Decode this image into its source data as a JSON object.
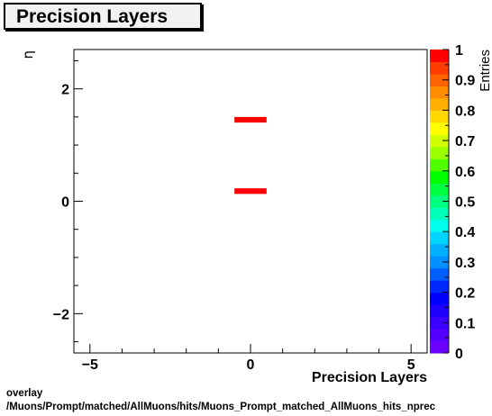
{
  "title": "Precision Layers",
  "footer": {
    "line1": "overlay",
    "line2": "/Muons/Prompt/matched/AllMuons/hits/Muons_Prompt_matched_AllMuons_hits_nprec"
  },
  "chart_data": {
    "type": "heatmap",
    "title": "Precision Layers",
    "xlabel": "Precision Layers",
    "ylabel": "η",
    "zlabel": "Entries",
    "xlim": [
      -5.5,
      5.5
    ],
    "ylim": [
      -2.7,
      2.7
    ],
    "zlim": [
      0,
      1
    ],
    "x_ticks": [
      -5,
      0,
      5
    ],
    "x_tick_labels": [
      "−5",
      "0",
      "5"
    ],
    "y_ticks": [
      -2,
      0,
      2
    ],
    "y_tick_labels": [
      "−2",
      "0",
      "2"
    ],
    "z_ticks": [
      0,
      0.1,
      0.2,
      0.3,
      0.4,
      0.5,
      0.6,
      0.7,
      0.8,
      0.9,
      1
    ],
    "z_tick_labels": [
      "0",
      "0.1",
      "0.2",
      "0.3",
      "0.4",
      "0.5",
      "0.6",
      "0.7",
      "0.8",
      "0.9",
      "1"
    ],
    "bins": [
      {
        "x": [
          -0.5,
          0.5
        ],
        "y": [
          1.4,
          1.5
        ],
        "value": 1
      },
      {
        "x": [
          -0.5,
          0.5
        ],
        "y": [
          0.13,
          0.23
        ],
        "value": 1
      }
    ],
    "palette": [
      "#6a00ff",
      "#5400ff",
      "#3c00ff",
      "#1e00ff",
      "#0000ff",
      "#0028ff",
      "#0060ff",
      "#0090ff",
      "#00b0ff",
      "#00d4ff",
      "#00ffee",
      "#00ffb8",
      "#00ff80",
      "#00ff40",
      "#00ff00",
      "#50ff00",
      "#9cff00",
      "#d2ff00",
      "#ffff00",
      "#ffd800",
      "#ffb000",
      "#ff8c00",
      "#ff6400",
      "#ff3c00",
      "#ff0000"
    ],
    "grid": false
  }
}
